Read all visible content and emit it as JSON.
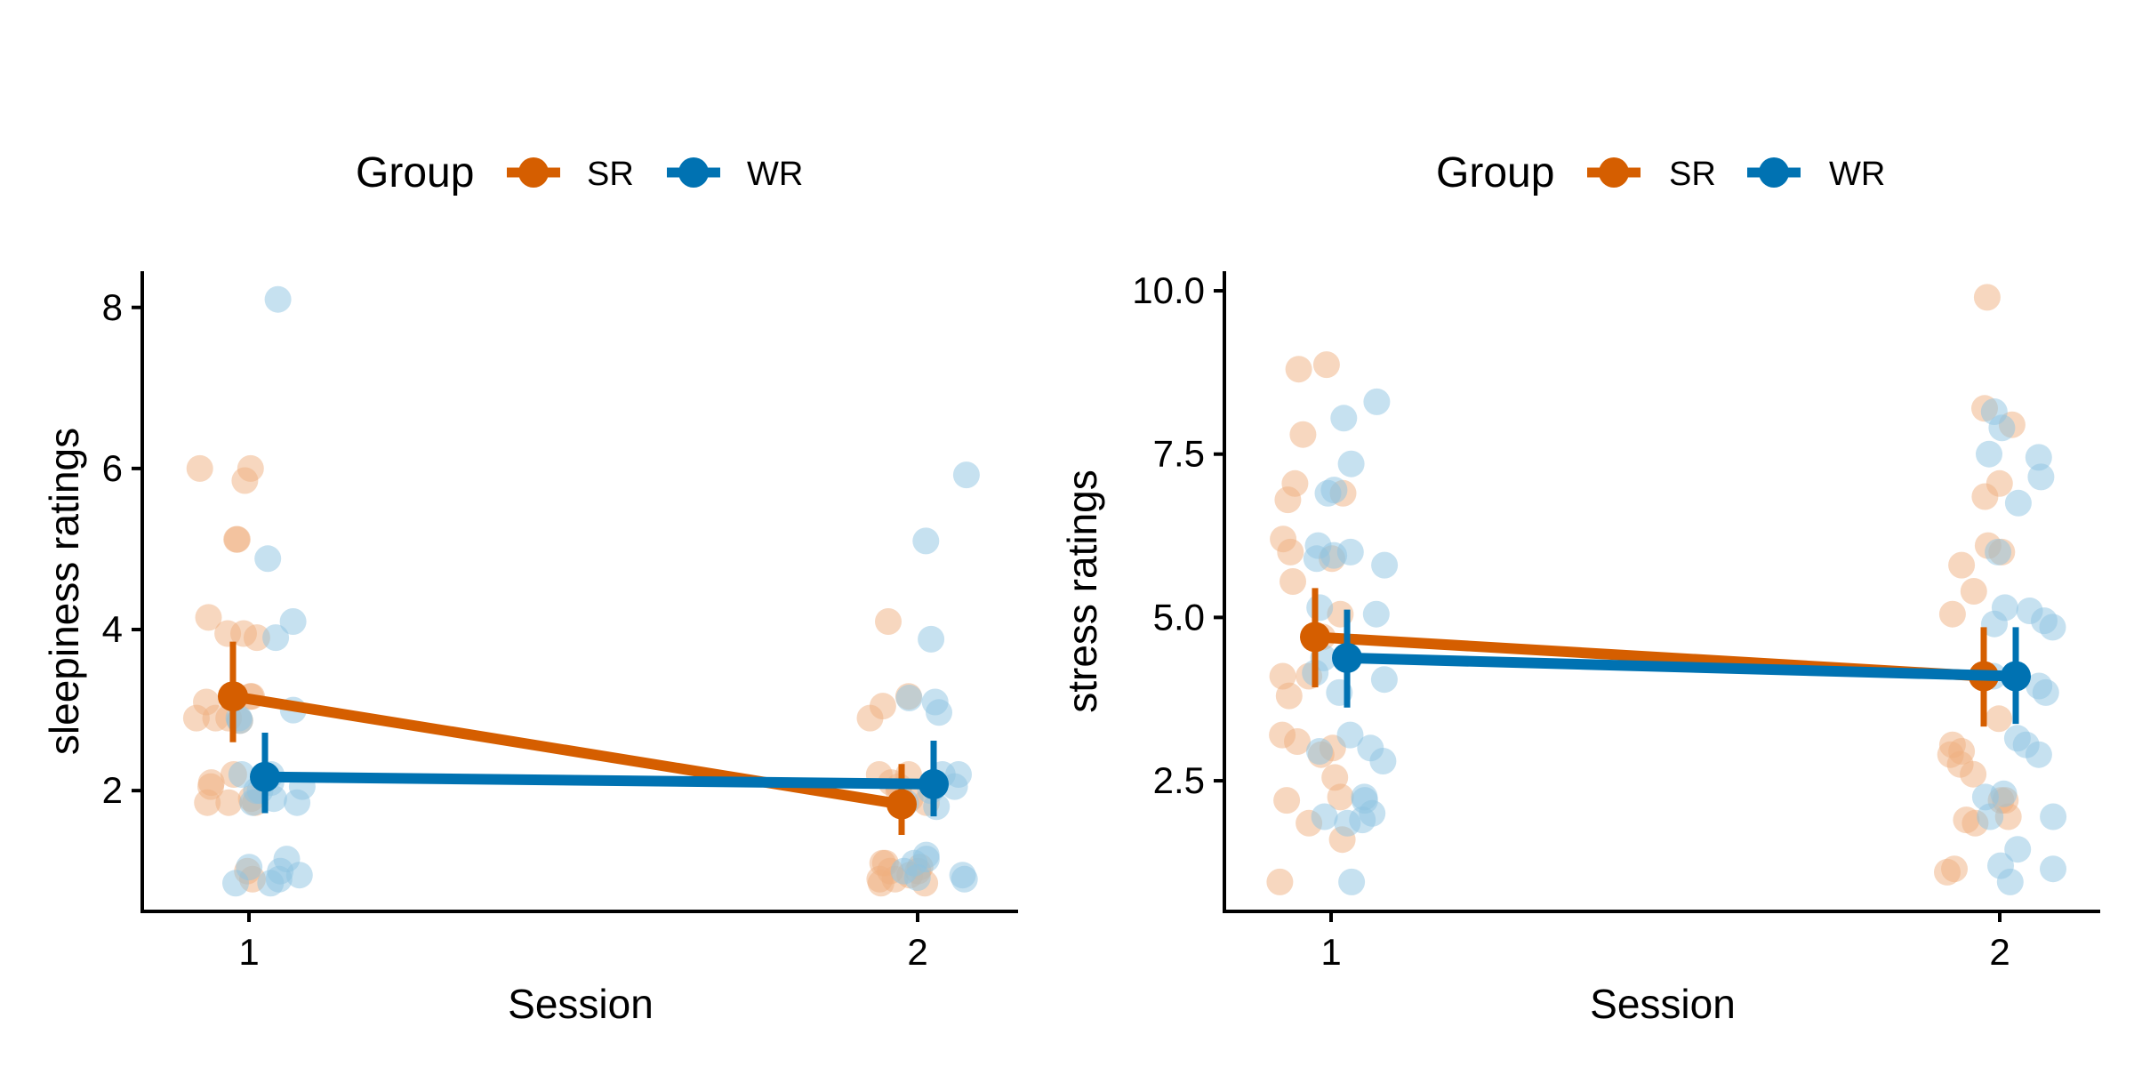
{
  "colors": {
    "SR": "#D55E00",
    "WR": "#0072B2",
    "SR_point": "#F0B080",
    "WR_point": "#8EC4E2",
    "axis": "#000000",
    "background": "#ffffff"
  },
  "legend": {
    "title": "Group",
    "position": "top",
    "items": [
      {
        "key": "SR",
        "label": "SR"
      },
      {
        "key": "WR",
        "label": "WR"
      }
    ]
  },
  "chart_data": [
    {
      "type": "scatter",
      "xlabel": "Session",
      "ylabel": "sleepiness ratings",
      "categories": [
        "1",
        "2"
      ],
      "ylim": [
        0.5,
        8.45
      ],
      "yticks": [
        2,
        4,
        6,
        8
      ],
      "grid": false,
      "summary": [
        {
          "name": "SR",
          "mean": [
            3.17,
            1.83
          ],
          "ci_low": [
            2.6,
            1.45
          ],
          "ci_high": [
            3.85,
            2.33
          ]
        },
        {
          "name": "WR",
          "mean": [
            2.17,
            2.08
          ],
          "ci_low": [
            1.72,
            1.68
          ],
          "ci_high": [
            2.72,
            2.62
          ]
        }
      ],
      "points": [
        {
          "group": "SR",
          "x": 1,
          "y": [
            6.0,
            6.0,
            5.85,
            5.12,
            5.12,
            4.15,
            3.95,
            3.95,
            3.9,
            3.17,
            3.17,
            3.1,
            2.9,
            2.9,
            2.9,
            2.87,
            2.2,
            2.1,
            2.05,
            1.9,
            1.85,
            1.85,
            1.85,
            1.0,
            0.9
          ]
        },
        {
          "group": "SR",
          "x": 2,
          "y": [
            4.1,
            3.17,
            3.05,
            2.9,
            2.2,
            2.2,
            2.1,
            2.05,
            2.0,
            1.9,
            1.85,
            1.1,
            1.1,
            1.05,
            1.0,
            1.0,
            0.95,
            0.9,
            0.9,
            0.85,
            0.85
          ]
        },
        {
          "group": "WR",
          "x": 1,
          "y": [
            8.1,
            4.88,
            4.1,
            3.9,
            3.0,
            2.9,
            2.87,
            2.2,
            2.2,
            2.1,
            2.05,
            2.0,
            2.0,
            1.9,
            1.85,
            1.85,
            1.15,
            1.05,
            1.0,
            0.95,
            0.9,
            0.85,
            0.85
          ]
        },
        {
          "group": "WR",
          "x": 2,
          "y": [
            5.92,
            5.1,
            3.88,
            3.15,
            3.1,
            2.97,
            2.2,
            2.2,
            2.05,
            2.0,
            1.85,
            1.8,
            1.2,
            1.15,
            1.1,
            1.0,
            0.95,
            0.92,
            0.9
          ]
        }
      ]
    },
    {
      "type": "scatter",
      "xlabel": "Session",
      "ylabel": "stress ratings",
      "categories": [
        "1",
        "2"
      ],
      "ylim": [
        0.5,
        10.3
      ],
      "yticks": [
        2.5,
        5.0,
        7.5,
        10.0
      ],
      "yticklabels": [
        "2.5",
        "5.0",
        "7.5",
        "10.0"
      ],
      "grid": false,
      "summary": [
        {
          "name": "SR",
          "mean": [
            4.7,
            4.1
          ],
          "ci_low": [
            3.93,
            3.33
          ],
          "ci_high": [
            5.45,
            4.85
          ]
        },
        {
          "name": "WR",
          "mean": [
            4.38,
            4.1
          ],
          "ci_low": [
            3.62,
            3.37
          ],
          "ci_high": [
            5.12,
            4.85
          ]
        }
      ],
      "points": [
        {
          "group": "SR",
          "x": 1,
          "y": [
            8.8,
            8.87,
            7.8,
            7.05,
            6.9,
            6.8,
            6.2,
            6.0,
            5.9,
            5.55,
            5.05,
            4.7,
            4.1,
            4.1,
            3.8,
            3.2,
            3.1,
            3.0,
            2.9,
            2.55,
            2.25,
            2.2,
            1.85,
            1.6,
            0.95
          ]
        },
        {
          "group": "SR",
          "x": 2,
          "y": [
            9.9,
            8.2,
            7.95,
            7.05,
            6.85,
            6.1,
            6.0,
            5.8,
            5.4,
            5.05,
            4.1,
            3.45,
            3.05,
            2.95,
            2.9,
            2.75,
            2.6,
            2.2,
            2.2,
            1.95,
            1.9,
            1.85,
            1.15,
            1.1
          ]
        },
        {
          "group": "WR",
          "x": 1,
          "y": [
            8.3,
            8.05,
            7.35,
            6.95,
            6.9,
            6.1,
            6.0,
            5.95,
            5.9,
            5.8,
            5.15,
            5.05,
            4.38,
            4.15,
            4.05,
            3.85,
            3.2,
            3.0,
            2.95,
            2.8,
            2.25,
            2.2,
            2.0,
            1.95,
            1.9,
            1.85,
            0.95
          ]
        },
        {
          "group": "WR",
          "x": 2,
          "y": [
            8.15,
            7.9,
            7.5,
            7.45,
            7.15,
            6.75,
            6.0,
            5.15,
            5.1,
            4.95,
            4.9,
            4.85,
            4.1,
            3.95,
            3.85,
            3.15,
            3.05,
            2.9,
            2.3,
            2.25,
            1.95,
            1.95,
            1.45,
            1.2,
            1.15,
            0.95
          ]
        }
      ]
    }
  ]
}
